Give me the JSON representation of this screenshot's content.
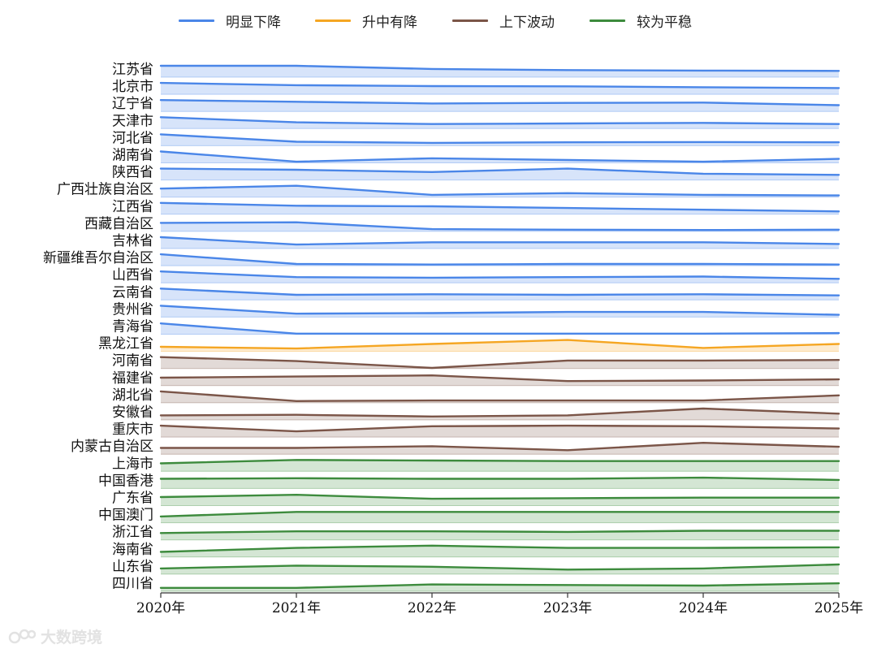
{
  "legend": [
    {
      "label": "明显下降",
      "color": "#4a86e8"
    },
    {
      "label": "升中有降",
      "color": "#f5a623"
    },
    {
      "label": "上下波动",
      "color": "#7b5548"
    },
    {
      "label": "较为平稳",
      "color": "#3d8b3d"
    }
  ],
  "watermark": {
    "text": "大数跨境"
  },
  "chart_data": {
    "type": "area",
    "categories": [
      "2020年",
      "2021年",
      "2022年",
      "2023年",
      "2024年",
      "2025年"
    ],
    "legend_position": "top-center",
    "grid": false,
    "series": [
      {
        "name": "江苏省",
        "group": "明显下降",
        "values": [
          1.0,
          1.0,
          0.72,
          0.62,
          0.58,
          0.55
        ]
      },
      {
        "name": "北京市",
        "group": "明显下降",
        "values": [
          1.0,
          0.8,
          0.72,
          0.7,
          0.62,
          0.55
        ]
      },
      {
        "name": "辽宁省",
        "group": "明显下降",
        "values": [
          1.0,
          0.85,
          0.7,
          0.75,
          0.78,
          0.55
        ]
      },
      {
        "name": "天津市",
        "group": "明显下降",
        "values": [
          1.0,
          0.55,
          0.4,
          0.45,
          0.5,
          0.4
        ]
      },
      {
        "name": "河北省",
        "group": "明显下降",
        "values": [
          1.0,
          0.35,
          0.25,
          0.3,
          0.32,
          0.3
        ]
      },
      {
        "name": "湖南省",
        "group": "明显下降",
        "values": [
          1.0,
          0.1,
          0.4,
          0.25,
          0.1,
          0.35
        ]
      },
      {
        "name": "陕西省",
        "group": "明显下降",
        "values": [
          1.0,
          0.9,
          0.7,
          1.0,
          0.55,
          0.45
        ]
      },
      {
        "name": "广西壮族自治区",
        "group": "明显下降",
        "values": [
          0.75,
          1.0,
          0.2,
          0.35,
          0.2,
          0.15
        ]
      },
      {
        "name": "江西省",
        "group": "明显下降",
        "values": [
          1.0,
          0.75,
          0.7,
          0.55,
          0.4,
          0.25
        ]
      },
      {
        "name": "西藏自治区",
        "group": "明显下降",
        "values": [
          0.75,
          0.8,
          0.2,
          0.15,
          0.12,
          0.15
        ]
      },
      {
        "name": "吉林省",
        "group": "明显下降",
        "values": [
          1.0,
          0.35,
          0.55,
          0.55,
          0.55,
          0.4
        ]
      },
      {
        "name": "新疆维吾尔自治区",
        "group": "明显下降",
        "values": [
          1.0,
          0.15,
          0.1,
          0.15,
          0.15,
          0.1
        ]
      },
      {
        "name": "山西省",
        "group": "明显下降",
        "values": [
          1.0,
          0.5,
          0.45,
          0.5,
          0.55,
          0.35
        ]
      },
      {
        "name": "云南省",
        "group": "明显下降",
        "values": [
          1.0,
          0.45,
          0.5,
          0.45,
          0.5,
          0.4
        ]
      },
      {
        "name": "贵州省",
        "group": "明显下降",
        "values": [
          1.0,
          0.3,
          0.35,
          0.45,
          0.45,
          0.2
        ]
      },
      {
        "name": "青海省",
        "group": "明显下降",
        "values": [
          0.95,
          0.05,
          0.05,
          0.05,
          0.05,
          0.1
        ]
      },
      {
        "name": "黑龙江省",
        "group": "升中有降",
        "values": [
          0.4,
          0.25,
          0.65,
          1.0,
          0.3,
          0.65
        ]
      },
      {
        "name": "河南省",
        "group": "上下波动",
        "values": [
          1.0,
          0.65,
          0.05,
          0.7,
          0.7,
          0.75
        ]
      },
      {
        "name": "福建省",
        "group": "上下波动",
        "values": [
          0.7,
          0.8,
          0.9,
          0.4,
          0.45,
          0.55
        ]
      },
      {
        "name": "湖北省",
        "group": "上下波动",
        "values": [
          1.0,
          0.15,
          0.2,
          0.2,
          0.2,
          0.65
        ]
      },
      {
        "name": "安徽省",
        "group": "上下波动",
        "values": [
          0.4,
          0.45,
          0.3,
          0.4,
          1.0,
          0.55
        ]
      },
      {
        "name": "重庆市",
        "group": "上下波动",
        "values": [
          1.0,
          0.5,
          0.95,
          1.0,
          0.95,
          0.75
        ]
      },
      {
        "name": "内蒙古自治区",
        "group": "上下波动",
        "values": [
          0.55,
          0.55,
          0.7,
          0.35,
          1.0,
          0.65
        ]
      },
      {
        "name": "上海市",
        "group": "较为平稳",
        "values": [
          0.7,
          1.0,
          0.95,
          0.9,
          0.9,
          0.9
        ]
      },
      {
        "name": "中国香港",
        "group": "较为平稳",
        "values": [
          0.85,
          0.9,
          0.85,
          0.85,
          0.95,
          0.75
        ]
      },
      {
        "name": "广东省",
        "group": "较为平稳",
        "values": [
          0.75,
          0.95,
          0.6,
          0.65,
          0.7,
          0.7
        ]
      },
      {
        "name": "中国澳门",
        "group": "较为平稳",
        "values": [
          0.55,
          0.95,
          0.95,
          0.95,
          0.95,
          0.95
        ]
      },
      {
        "name": "浙江省",
        "group": "较为平稳",
        "values": [
          0.6,
          0.75,
          0.75,
          0.7,
          0.8,
          0.8
        ]
      },
      {
        "name": "海南省",
        "group": "较为平稳",
        "values": [
          0.45,
          0.8,
          1.0,
          0.8,
          0.8,
          0.85
        ]
      },
      {
        "name": "山东省",
        "group": "较为平稳",
        "values": [
          0.5,
          0.75,
          0.65,
          0.4,
          0.5,
          0.85
        ]
      },
      {
        "name": "四川省",
        "group": "较为平稳",
        "values": [
          0.3,
          0.3,
          0.6,
          0.55,
          0.5,
          0.7
        ]
      }
    ]
  }
}
